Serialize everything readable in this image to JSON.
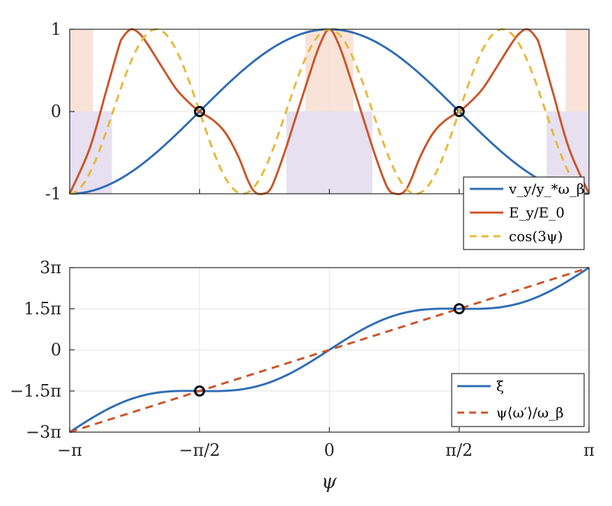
{
  "colors": {
    "blue": "#2F6DB5",
    "red": "#CC5427",
    "yellow": "#E6B93A",
    "pink": "#F9E3D9",
    "lavender": "#E6E0F0"
  },
  "chart_data": [
    {
      "id": "top",
      "type": "line",
      "xlim": [
        -3.14159,
        3.14159
      ],
      "ylim": [
        -1,
        1
      ],
      "yticks": [
        1,
        0,
        -1
      ],
      "ytick_labels": [
        "1",
        "0",
        "-1"
      ],
      "xtick_labels": [],
      "grid": true,
      "legend_position": "bottom-right",
      "series": [
        {
          "name": "v_y / y_* ω_β",
          "label": "v_y/y_*ω_β",
          "color": "#2F6DB5",
          "dash": "solid",
          "x": [
            -3.1416,
            -2.7489,
            -2.3562,
            -1.9635,
            -1.5708,
            -1.1781,
            -0.7854,
            -0.3927,
            0,
            0.3927,
            0.7854,
            1.1781,
            1.5708,
            1.9635,
            2.3562,
            2.7489,
            3.1416
          ],
          "y": [
            -1,
            -0.924,
            -0.707,
            -0.383,
            0,
            0.383,
            0.707,
            0.924,
            1,
            0.924,
            0.707,
            0.383,
            0,
            -0.383,
            -0.707,
            -0.924,
            -1
          ]
        },
        {
          "name": "E_y / E_0",
          "label": "E_y/E_0",
          "color": "#CC5427",
          "dash": "solid",
          "x": [
            -3.1416,
            -2.9,
            -2.7,
            -2.55,
            -2.5,
            -2.4,
            -2.3,
            -2.2,
            -2.0,
            -1.85,
            -1.7,
            -1.5708,
            -1.4,
            -1.25,
            -1.1,
            -0.98,
            -0.9,
            -0.8,
            -0.7,
            -0.55,
            -0.4,
            -0.25,
            -0.12,
            0,
            0.12,
            0.25,
            0.4,
            0.55,
            0.7,
            0.8,
            0.9,
            0.98,
            1.1,
            1.25,
            1.4,
            1.5708,
            1.7,
            1.85,
            2.0,
            2.2,
            2.3,
            2.4,
            2.5,
            2.55,
            2.7,
            2.9,
            3.1416
          ],
          "y": [
            -1,
            -0.45,
            0.25,
            0.78,
            0.9,
            1.0,
            0.95,
            0.82,
            0.5,
            0.27,
            0.11,
            0,
            -0.11,
            -0.27,
            -0.55,
            -0.85,
            -0.98,
            -1.0,
            -0.92,
            -0.52,
            -0.05,
            0.42,
            0.8,
            1.0,
            0.8,
            0.42,
            -0.05,
            -0.52,
            -0.92,
            -1.0,
            -0.98,
            -0.85,
            -0.55,
            -0.27,
            -0.11,
            0,
            0.11,
            0.27,
            0.5,
            0.82,
            0.95,
            1.0,
            0.9,
            0.78,
            0.25,
            -0.45,
            -1
          ]
        },
        {
          "name": "cos(3ψ)",
          "label": "cos(3ψ)",
          "color": "#E6B93A",
          "dash": "dashed",
          "formula": "cos(3*psi)"
        }
      ],
      "shaded_regions": [
        {
          "x0": -3.1416,
          "x1": -2.86,
          "y0": 0,
          "y1": 1,
          "color": "pink"
        },
        {
          "x0": -0.29,
          "x1": 0.29,
          "y0": 0,
          "y1": 1,
          "color": "pink"
        },
        {
          "x0": 2.86,
          "x1": 3.1416,
          "y0": 0,
          "y1": 1,
          "color": "pink"
        },
        {
          "x0": -3.1416,
          "x1": -2.63,
          "y0": -1,
          "y1": 0,
          "color": "lavender"
        },
        {
          "x0": -0.52,
          "x1": 0.52,
          "y0": -1,
          "y1": 0,
          "color": "lavender"
        },
        {
          "x0": 2.63,
          "x1": 3.1416,
          "y0": -1,
          "y1": 0,
          "color": "lavender"
        }
      ],
      "markers": [
        {
          "x": -1.5708,
          "y": 0
        },
        {
          "x": 1.5708,
          "y": 0
        }
      ]
    },
    {
      "id": "bottom",
      "type": "line",
      "xlim": [
        -3.14159,
        3.14159
      ],
      "ylim": [
        -3,
        3
      ],
      "ylim_units": "π",
      "yticks": [
        3,
        1.5,
        0,
        -1.5,
        -3
      ],
      "ytick_labels": [
        "3π",
        "1.5π",
        "0",
        "−1.5π",
        "−3π"
      ],
      "xticks": [
        -3.14159,
        -1.5708,
        0,
        1.5708,
        3.14159
      ],
      "xtick_labels": [
        "−π",
        "−π/2",
        "0",
        "π/2",
        "π"
      ],
      "xlabel": "ψ",
      "grid": true,
      "legend_position": "bottom-right",
      "series": [
        {
          "name": "ξ",
          "label": "ξ",
          "color": "#2F6DB5",
          "dash": "solid",
          "formula": "3*psi/pi + 0.5*sin(2*psi)"
        },
        {
          "name": "ψ⟨ω′⟩/ω_β",
          "label": "ψ⟨ω′⟩/ω_β",
          "color": "#CC5427",
          "dash": "dashed",
          "formula": "3*psi/pi"
        }
      ],
      "markers": [
        {
          "x": -1.5708,
          "y": -1.5
        },
        {
          "x": 1.5708,
          "y": 1.5
        }
      ]
    }
  ]
}
